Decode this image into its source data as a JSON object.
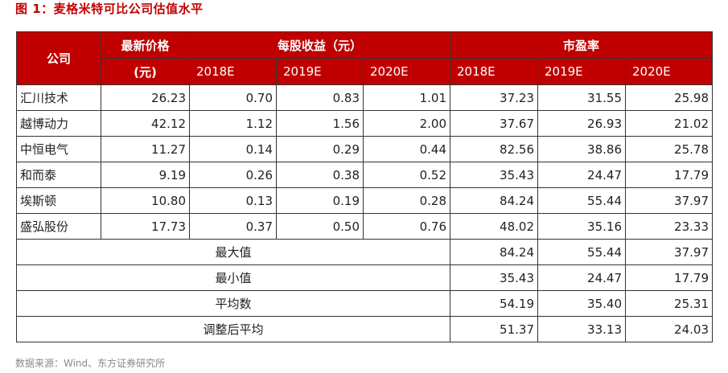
{
  "title": "图 1：麦格米特可比公司估值水平",
  "header": {
    "company": "公司",
    "price_line1": "最新价格",
    "price_line2": "(元)",
    "eps_group": "每股收益（元）",
    "pe_group": "市盈率",
    "years": [
      "2018E",
      "2019E",
      "2020E"
    ]
  },
  "rows": [
    {
      "company": "汇川技术",
      "price": "26.23",
      "eps": [
        "0.70",
        "0.83",
        "1.01"
      ],
      "pe": [
        "37.23",
        "31.55",
        "25.98"
      ]
    },
    {
      "company": "越博动力",
      "price": "42.12",
      "eps": [
        "1.12",
        "1.56",
        "2.00"
      ],
      "pe": [
        "37.67",
        "26.93",
        "21.02"
      ]
    },
    {
      "company": "中恒电气",
      "price": "11.27",
      "eps": [
        "0.14",
        "0.29",
        "0.44"
      ],
      "pe": [
        "82.56",
        "38.86",
        "25.78"
      ]
    },
    {
      "company": "和而泰",
      "price": "9.19",
      "eps": [
        "0.26",
        "0.38",
        "0.52"
      ],
      "pe": [
        "35.43",
        "24.47",
        "17.79"
      ]
    },
    {
      "company": "埃斯顿",
      "price": "10.80",
      "eps": [
        "0.13",
        "0.19",
        "0.28"
      ],
      "pe": [
        "84.24",
        "55.44",
        "37.97"
      ]
    },
    {
      "company": "盛弘股份",
      "price": "17.73",
      "eps": [
        "0.37",
        "0.50",
        "0.76"
      ],
      "pe": [
        "48.02",
        "35.16",
        "23.33"
      ]
    }
  ],
  "stats": [
    {
      "label": "最大值",
      "pe": [
        "84.24",
        "55.44",
        "37.97"
      ]
    },
    {
      "label": "最小值",
      "pe": [
        "35.43",
        "24.47",
        "17.79"
      ]
    },
    {
      "label": "平均数",
      "pe": [
        "54.19",
        "35.40",
        "25.31"
      ]
    },
    {
      "label": "调整后平均",
      "pe": [
        "51.37",
        "33.13",
        "24.03"
      ]
    }
  ],
  "source": "数据来源：Wind、东方证券研究所"
}
